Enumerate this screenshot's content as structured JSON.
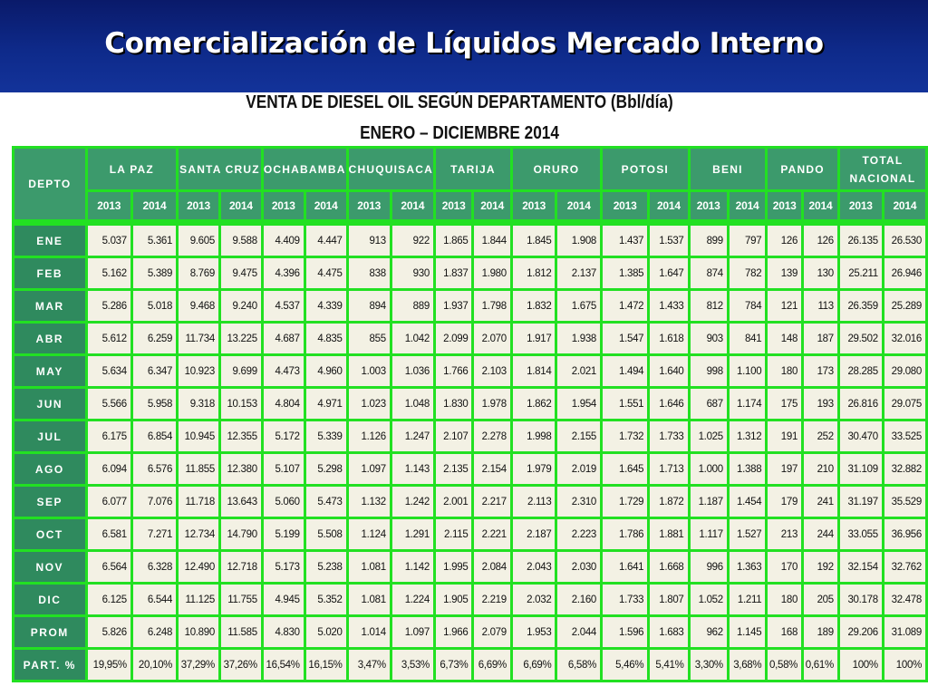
{
  "title": "Comercialización de Líquidos Mercado Interno",
  "table_title": "VENTA DE DIESEL OIL SEGÚN DEPARTAMENTO (Bbl/día)",
  "table_subtitle": "ENERO – DICIEMBRE 2014",
  "header": {
    "depto": "DEPTO",
    "departments": [
      "LA PAZ",
      "SANTA CRUZ",
      "OCHABAMBA",
      "CHUQUISACA",
      "TARIJA",
      "ORURO",
      "POTOSI",
      "BENI",
      "PANDO",
      "TOTAL NACIONAL"
    ],
    "years": [
      "2013",
      "2014"
    ]
  },
  "rows": [
    {
      "label": "ENE",
      "values": [
        "5.037",
        "5.361",
        "9.605",
        "9.588",
        "4.409",
        "4.447",
        "913",
        "922",
        "1.865",
        "1.844",
        "1.845",
        "1.908",
        "1.437",
        "1.537",
        "899",
        "797",
        "126",
        "126",
        "26.135",
        "26.530"
      ]
    },
    {
      "label": "FEB",
      "values": [
        "5.162",
        "5.389",
        "8.769",
        "9.475",
        "4.396",
        "4.475",
        "838",
        "930",
        "1.837",
        "1.980",
        "1.812",
        "2.137",
        "1.385",
        "1.647",
        "874",
        "782",
        "139",
        "130",
        "25.211",
        "26.946"
      ]
    },
    {
      "label": "MAR",
      "values": [
        "5.286",
        "5.018",
        "9.468",
        "9.240",
        "4.537",
        "4.339",
        "894",
        "889",
        "1.937",
        "1.798",
        "1.832",
        "1.675",
        "1.472",
        "1.433",
        "812",
        "784",
        "121",
        "113",
        "26.359",
        "25.289"
      ]
    },
    {
      "label": "ABR",
      "values": [
        "5.612",
        "6.259",
        "11.734",
        "13.225",
        "4.687",
        "4.835",
        "855",
        "1.042",
        "2.099",
        "2.070",
        "1.917",
        "1.938",
        "1.547",
        "1.618",
        "903",
        "841",
        "148",
        "187",
        "29.502",
        "32.016"
      ]
    },
    {
      "label": "MAY",
      "values": [
        "5.634",
        "6.347",
        "10.923",
        "9.699",
        "4.473",
        "4.960",
        "1.003",
        "1.036",
        "1.766",
        "2.103",
        "1.814",
        "2.021",
        "1.494",
        "1.640",
        "998",
        "1.100",
        "180",
        "173",
        "28.285",
        "29.080"
      ]
    },
    {
      "label": "JUN",
      "values": [
        "5.566",
        "5.958",
        "9.318",
        "10.153",
        "4.804",
        "4.971",
        "1.023",
        "1.048",
        "1.830",
        "1.978",
        "1.862",
        "1.954",
        "1.551",
        "1.646",
        "687",
        "1.174",
        "175",
        "193",
        "26.816",
        "29.075"
      ]
    },
    {
      "label": "JUL",
      "values": [
        "6.175",
        "6.854",
        "10.945",
        "12.355",
        "5.172",
        "5.339",
        "1.126",
        "1.247",
        "2.107",
        "2.278",
        "1.998",
        "2.155",
        "1.732",
        "1.733",
        "1.025",
        "1.312",
        "191",
        "252",
        "30.470",
        "33.525"
      ]
    },
    {
      "label": "AGO",
      "values": [
        "6.094",
        "6.576",
        "11.855",
        "12.380",
        "5.107",
        "5.298",
        "1.097",
        "1.143",
        "2.135",
        "2.154",
        "1.979",
        "2.019",
        "1.645",
        "1.713",
        "1.000",
        "1.388",
        "197",
        "210",
        "31.109",
        "32.882"
      ]
    },
    {
      "label": "SEP",
      "values": [
        "6.077",
        "7.076",
        "11.718",
        "13.643",
        "5.060",
        "5.473",
        "1.132",
        "1.242",
        "2.001",
        "2.217",
        "2.113",
        "2.310",
        "1.729",
        "1.872",
        "1.187",
        "1.454",
        "179",
        "241",
        "31.197",
        "35.529"
      ]
    },
    {
      "label": "OCT",
      "values": [
        "6.581",
        "7.271",
        "12.734",
        "14.790",
        "5.199",
        "5.508",
        "1.124",
        "1.291",
        "2.115",
        "2.221",
        "2.187",
        "2.223",
        "1.786",
        "1.881",
        "1.117",
        "1.527",
        "213",
        "244",
        "33.055",
        "36.956"
      ]
    },
    {
      "label": "NOV",
      "values": [
        "6.564",
        "6.328",
        "12.490",
        "12.718",
        "5.173",
        "5.238",
        "1.081",
        "1.142",
        "1.995",
        "2.084",
        "2.043",
        "2.030",
        "1.641",
        "1.668",
        "996",
        "1.363",
        "170",
        "192",
        "32.154",
        "32.762"
      ]
    },
    {
      "label": "DIC",
      "values": [
        "6.125",
        "6.544",
        "11.125",
        "11.755",
        "4.945",
        "5.352",
        "1.081",
        "1.224",
        "1.905",
        "2.219",
        "2.032",
        "2.160",
        "1.733",
        "1.807",
        "1.052",
        "1.211",
        "180",
        "205",
        "30.178",
        "32.478"
      ]
    },
    {
      "label": "PROM",
      "values": [
        "5.826",
        "6.248",
        "10.890",
        "11.585",
        "4.830",
        "5.020",
        "1.014",
        "1.097",
        "1.966",
        "2.079",
        "1.953",
        "2.044",
        "1.596",
        "1.683",
        "962",
        "1.145",
        "168",
        "189",
        "29.206",
        "31.089"
      ]
    },
    {
      "label": "PART. %",
      "values": [
        "19,95%",
        "20,10%",
        "37,29%",
        "37,26%",
        "16,54%",
        "16,15%",
        "3,47%",
        "3,53%",
        "6,73%",
        "6,69%",
        "6,69%",
        "6,58%",
        "5,46%",
        "5,41%",
        "3,30%",
        "3,68%",
        "0,58%",
        "0,61%",
        "100%",
        "100%"
      ]
    }
  ]
}
